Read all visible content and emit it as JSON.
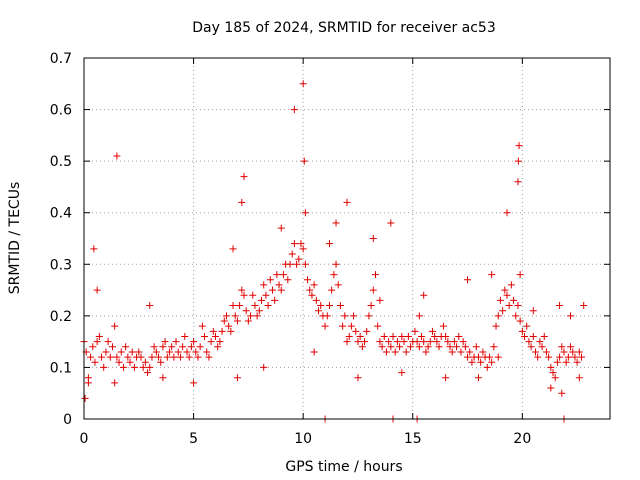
{
  "chart_data": {
    "type": "scatter",
    "title": "Day 185 of 2024, SRMTID for receiver ac53",
    "xlabel": "GPS time / hours",
    "ylabel": "SRMTID / TECUs",
    "xlim": [
      0,
      24
    ],
    "ylim": [
      0,
      0.7
    ],
    "xticks": [
      0,
      5,
      10,
      15,
      20
    ],
    "xtick_labels": [
      "0",
      "5",
      "10",
      "15",
      "20"
    ],
    "yticks": [
      0,
      0.1,
      0.2,
      0.3,
      0.4,
      0.5,
      0.6,
      0.7
    ],
    "ytick_labels": [
      "0",
      "0.1",
      "0.2",
      "0.3",
      "0.4",
      "0.5",
      "0.6",
      "0.7"
    ],
    "grid": true,
    "marker": "+",
    "marker_color": "#e00000",
    "series": [
      {
        "name": "SRMTID",
        "x": [
          0.0,
          0.1,
          0.2,
          0.3,
          0.4,
          0.5,
          0.6,
          0.7,
          0.8,
          0.9,
          1.0,
          1.1,
          1.2,
          1.3,
          1.4,
          1.5,
          1.6,
          1.7,
          1.8,
          1.9,
          2.0,
          2.1,
          2.2,
          2.3,
          2.4,
          2.5,
          2.6,
          2.7,
          2.8,
          2.9,
          3.0,
          3.1,
          3.2,
          3.3,
          3.4,
          3.5,
          3.6,
          3.7,
          3.8,
          3.9,
          4.0,
          4.1,
          4.2,
          4.3,
          4.4,
          4.5,
          4.6,
          4.7,
          4.8,
          4.9,
          5.0,
          5.1,
          5.2,
          5.3,
          5.4,
          5.5,
          5.6,
          5.7,
          5.8,
          5.9,
          6.0,
          6.1,
          6.2,
          6.3,
          6.4,
          6.5,
          6.6,
          6.7,
          6.8,
          6.9,
          7.0,
          7.1,
          7.2,
          7.3,
          7.4,
          7.5,
          7.6,
          7.7,
          7.8,
          7.9,
          8.0,
          8.1,
          8.2,
          8.3,
          8.4,
          8.5,
          8.6,
          8.7,
          8.8,
          8.9,
          9.0,
          9.1,
          9.2,
          9.3,
          9.4,
          9.5,
          9.6,
          9.7,
          9.8,
          9.9,
          10.0,
          10.1,
          10.2,
          10.3,
          10.4,
          10.5,
          10.6,
          10.7,
          10.8,
          10.9,
          11.0,
          11.1,
          11.2,
          11.3,
          11.4,
          11.5,
          11.6,
          11.7,
          11.8,
          11.9,
          12.0,
          12.1,
          12.2,
          12.3,
          12.4,
          12.5,
          12.6,
          12.7,
          12.8,
          12.9,
          13.0,
          13.1,
          13.2,
          13.3,
          13.4,
          13.5,
          13.6,
          13.7,
          13.8,
          13.9,
          14.0,
          14.1,
          14.2,
          14.3,
          14.4,
          14.5,
          14.6,
          14.7,
          14.8,
          14.9,
          15.0,
          15.1,
          15.2,
          15.3,
          15.4,
          15.5,
          15.6,
          15.7,
          15.8,
          15.9,
          16.0,
          16.1,
          16.2,
          16.3,
          16.4,
          16.5,
          16.6,
          16.7,
          16.8,
          16.9,
          17.0,
          17.1,
          17.2,
          17.3,
          17.4,
          17.5,
          17.6,
          17.7,
          17.8,
          17.9,
          18.0,
          18.1,
          18.2,
          18.3,
          18.4,
          18.5,
          18.6,
          18.7,
          18.8,
          18.9,
          19.0,
          19.1,
          19.2,
          19.3,
          19.4,
          19.5,
          19.6,
          19.7,
          19.8,
          19.9,
          20.0,
          20.1,
          20.2,
          20.3,
          20.4,
          20.5,
          20.6,
          20.7,
          20.8,
          20.9,
          21.0,
          21.1,
          21.2,
          21.3,
          21.4,
          21.5,
          21.6,
          21.7,
          21.8,
          21.9,
          22.0,
          22.1,
          22.2,
          22.3,
          22.4,
          22.5,
          22.6,
          22.7,
          22.8,
          0.05,
          0.45,
          1.5,
          7.2,
          7.3,
          9.6,
          10.0,
          10.05,
          10.1,
          11.2,
          12.0,
          13.2,
          14.0,
          18.6,
          19.3,
          19.8,
          19.82,
          19.85,
          19.9,
          21.7,
          21.9,
          11.0,
          14.1,
          15.2,
          15.3,
          0.2,
          0.6,
          1.4,
          3.0,
          3.6,
          5.0,
          6.8,
          7.0,
          8.2,
          9.0,
          10.5,
          11.5,
          12.5,
          13.5,
          14.5,
          15.5,
          16.5,
          17.5,
          18.0,
          18.9,
          20.5,
          21.3,
          21.8,
          22.2,
          22.6
        ],
        "y": [
          0.15,
          0.13,
          0.08,
          0.12,
          0.14,
          0.11,
          0.15,
          0.16,
          0.12,
          0.1,
          0.13,
          0.15,
          0.12,
          0.14,
          0.18,
          0.12,
          0.11,
          0.13,
          0.1,
          0.14,
          0.12,
          0.11,
          0.13,
          0.1,
          0.12,
          0.13,
          0.12,
          0.1,
          0.11,
          0.09,
          0.1,
          0.12,
          0.14,
          0.13,
          0.12,
          0.11,
          0.14,
          0.15,
          0.12,
          0.13,
          0.14,
          0.12,
          0.15,
          0.13,
          0.12,
          0.14,
          0.16,
          0.13,
          0.12,
          0.14,
          0.15,
          0.13,
          0.12,
          0.14,
          0.18,
          0.16,
          0.13,
          0.12,
          0.15,
          0.17,
          0.16,
          0.14,
          0.15,
          0.17,
          0.19,
          0.2,
          0.18,
          0.17,
          0.22,
          0.2,
          0.19,
          0.22,
          0.25,
          0.24,
          0.21,
          0.19,
          0.2,
          0.24,
          0.22,
          0.2,
          0.21,
          0.23,
          0.26,
          0.24,
          0.22,
          0.27,
          0.25,
          0.23,
          0.28,
          0.26,
          0.25,
          0.28,
          0.3,
          0.27,
          0.3,
          0.32,
          0.34,
          0.3,
          0.31,
          0.34,
          0.33,
          0.3,
          0.27,
          0.25,
          0.24,
          0.26,
          0.23,
          0.21,
          0.22,
          0.2,
          0.18,
          0.2,
          0.22,
          0.25,
          0.28,
          0.3,
          0.26,
          0.22,
          0.18,
          0.2,
          0.15,
          0.16,
          0.18,
          0.2,
          0.17,
          0.15,
          0.16,
          0.14,
          0.15,
          0.17,
          0.2,
          0.22,
          0.25,
          0.28,
          0.18,
          0.15,
          0.14,
          0.16,
          0.13,
          0.15,
          0.14,
          0.16,
          0.13,
          0.15,
          0.14,
          0.16,
          0.15,
          0.13,
          0.16,
          0.14,
          0.15,
          0.17,
          0.15,
          0.14,
          0.16,
          0.15,
          0.13,
          0.14,
          0.15,
          0.17,
          0.16,
          0.15,
          0.14,
          0.16,
          0.18,
          0.16,
          0.15,
          0.14,
          0.13,
          0.15,
          0.14,
          0.16,
          0.13,
          0.15,
          0.14,
          0.12,
          0.13,
          0.11,
          0.12,
          0.14,
          0.12,
          0.11,
          0.13,
          0.12,
          0.1,
          0.12,
          0.11,
          0.14,
          0.18,
          0.2,
          0.23,
          0.21,
          0.25,
          0.24,
          0.22,
          0.26,
          0.23,
          0.2,
          0.22,
          0.19,
          0.17,
          0.16,
          0.18,
          0.15,
          0.14,
          0.16,
          0.13,
          0.12,
          0.15,
          0.14,
          0.16,
          0.13,
          0.12,
          0.1,
          0.09,
          0.08,
          0.11,
          0.12,
          0.14,
          0.13,
          0.11,
          0.12,
          0.14,
          0.13,
          0.12,
          0.11,
          0.13,
          0.12,
          0.22,
          0.04,
          0.33,
          0.51,
          0.42,
          0.47,
          0.6,
          0.65,
          0.5,
          0.4,
          0.34,
          0.42,
          0.35,
          0.38,
          0.28,
          0.4,
          0.46,
          0.5,
          0.53,
          0.28,
          0.22,
          0.0,
          0.0,
          0.0,
          0.0,
          0.2,
          0.07,
          0.25,
          0.07,
          0.22,
          0.08,
          0.07,
          0.33,
          0.08,
          0.1,
          0.37,
          0.13,
          0.38,
          0.08,
          0.23,
          0.09,
          0.24,
          0.08,
          0.27,
          0.08,
          0.12,
          0.21,
          0.06,
          0.05,
          0.2,
          0.08
        ]
      }
    ]
  }
}
